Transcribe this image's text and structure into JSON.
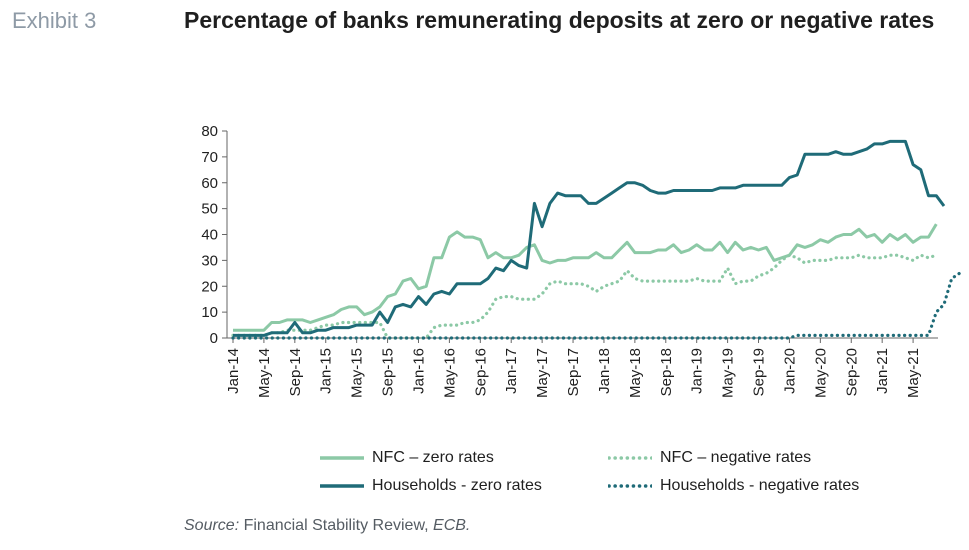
{
  "header": {
    "exhibit_label": "Exhibit 3",
    "title": "Percentage of banks remunerating deposits at zero or negative rates"
  },
  "source": {
    "prefix": "Source:",
    "text": "Financial Stability Review,",
    "publisher": "ECB."
  },
  "chart_data": {
    "type": "line",
    "title": "Percentage of banks remunerating deposits at zero or negative rates",
    "xlabel": "",
    "ylabel": "",
    "ylim": [
      0,
      80
    ],
    "yticks": [
      0,
      10,
      20,
      30,
      40,
      50,
      60,
      70,
      80
    ],
    "grid": false,
    "legend_position": "bottom",
    "x_tick_labels": [
      "Jan-14",
      "May-14",
      "Sep-14",
      "Jan-15",
      "May-15",
      "Sep-15",
      "Jan-16",
      "May-16",
      "Sep-16",
      "Jan-17",
      "May-17",
      "Sep-17",
      "Jan-18",
      "May-18",
      "Sep-18",
      "Jan-19",
      "May-19",
      "Sep-19",
      "Jan-20",
      "May-20",
      "Sep-20",
      "Jan-21",
      "May-21"
    ],
    "series": [
      {
        "name": "NFC – zero rates",
        "color": "#8cc9a6",
        "style": "solid",
        "values": [
          3,
          3,
          3,
          3,
          3,
          6,
          6,
          7,
          7,
          7,
          6,
          7,
          8,
          9,
          11,
          12,
          12,
          9,
          10,
          12,
          16,
          17,
          22,
          23,
          19,
          20,
          31,
          31,
          39,
          41,
          39,
          39,
          38,
          31,
          33,
          31,
          31,
          32,
          35,
          36,
          30,
          29,
          30,
          30,
          31,
          31,
          31,
          33,
          31,
          31,
          34,
          37,
          33,
          33,
          33,
          34,
          34,
          36,
          33,
          34,
          36,
          34,
          34,
          37,
          33,
          37,
          34,
          35,
          34,
          35,
          30,
          31,
          32,
          36,
          35,
          36,
          38,
          37,
          39,
          40,
          40,
          42,
          39,
          40,
          37,
          40,
          38,
          40,
          37,
          39,
          39,
          44
        ]
      },
      {
        "name": "NFC – negative rates",
        "color": "#8cc9a6",
        "style": "dotted",
        "values": [
          1,
          1,
          1,
          1,
          1,
          2,
          2,
          3,
          3,
          3,
          3,
          4,
          5,
          5,
          6,
          6,
          6,
          6,
          6,
          6,
          0,
          0,
          0,
          0,
          0,
          0,
          4,
          5,
          5,
          5,
          6,
          6,
          7,
          10,
          15,
          16,
          16,
          15,
          15,
          15,
          17,
          21,
          22,
          21,
          21,
          21,
          20,
          18,
          20,
          21,
          22,
          26,
          23,
          22,
          22,
          22,
          22,
          22,
          22,
          22,
          23,
          22,
          22,
          22,
          27,
          21,
          22,
          22,
          24,
          25,
          27,
          30,
          32,
          31,
          29,
          30,
          30,
          30,
          31,
          31,
          31,
          32,
          31,
          31,
          31,
          32,
          32,
          31,
          30,
          32,
          31,
          32
        ]
      },
      {
        "name": "Households - zero rates",
        "color": "#1f6b78",
        "style": "solid",
        "values": [
          1,
          1,
          1,
          1,
          1,
          2,
          2,
          2,
          6,
          2,
          2,
          3,
          3,
          4,
          4,
          4,
          5,
          5,
          5,
          10,
          6,
          12,
          13,
          12,
          16,
          13,
          17,
          18,
          17,
          21,
          21,
          21,
          21,
          23,
          27,
          26,
          30,
          28,
          27,
          52,
          43,
          52,
          56,
          55,
          55,
          55,
          52,
          52,
          54,
          56,
          58,
          60,
          60,
          59,
          57,
          56,
          56,
          57,
          57,
          57,
          57,
          57,
          57,
          58,
          58,
          58,
          59,
          59,
          59,
          59,
          59,
          59,
          62,
          63,
          71,
          71,
          71,
          71,
          72,
          71,
          71,
          72,
          73,
          75,
          75,
          76,
          76,
          76,
          67,
          65,
          55,
          55,
          51
        ]
      },
      {
        "name": "Households - negative rates",
        "color": "#1f6b78",
        "style": "dotted",
        "values": [
          0,
          0,
          0,
          0,
          0,
          0,
          0,
          0,
          0,
          0,
          0,
          0,
          0,
          0,
          0,
          0,
          0,
          0,
          0,
          0,
          0,
          0,
          0,
          0,
          0,
          0,
          0,
          0,
          0,
          0,
          0,
          0,
          0,
          0,
          0,
          0,
          0,
          0,
          0,
          0,
          0,
          0,
          0,
          0,
          0,
          0,
          0,
          0,
          0,
          0,
          0,
          0,
          0,
          0,
          0,
          0,
          0,
          0,
          0,
          0,
          0,
          0,
          0,
          0,
          0,
          0,
          0,
          0,
          0,
          0,
          0,
          0,
          0,
          1,
          1,
          1,
          1,
          1,
          1,
          1,
          1,
          1,
          1,
          1,
          1,
          1,
          1,
          1,
          1,
          1,
          1,
          10,
          13,
          23,
          25
        ]
      }
    ]
  },
  "legend": [
    {
      "label": "NFC – zero rates"
    },
    {
      "label": "NFC – negative rates"
    },
    {
      "label": "Households - zero rates"
    },
    {
      "label": "Households - negative rates"
    }
  ]
}
